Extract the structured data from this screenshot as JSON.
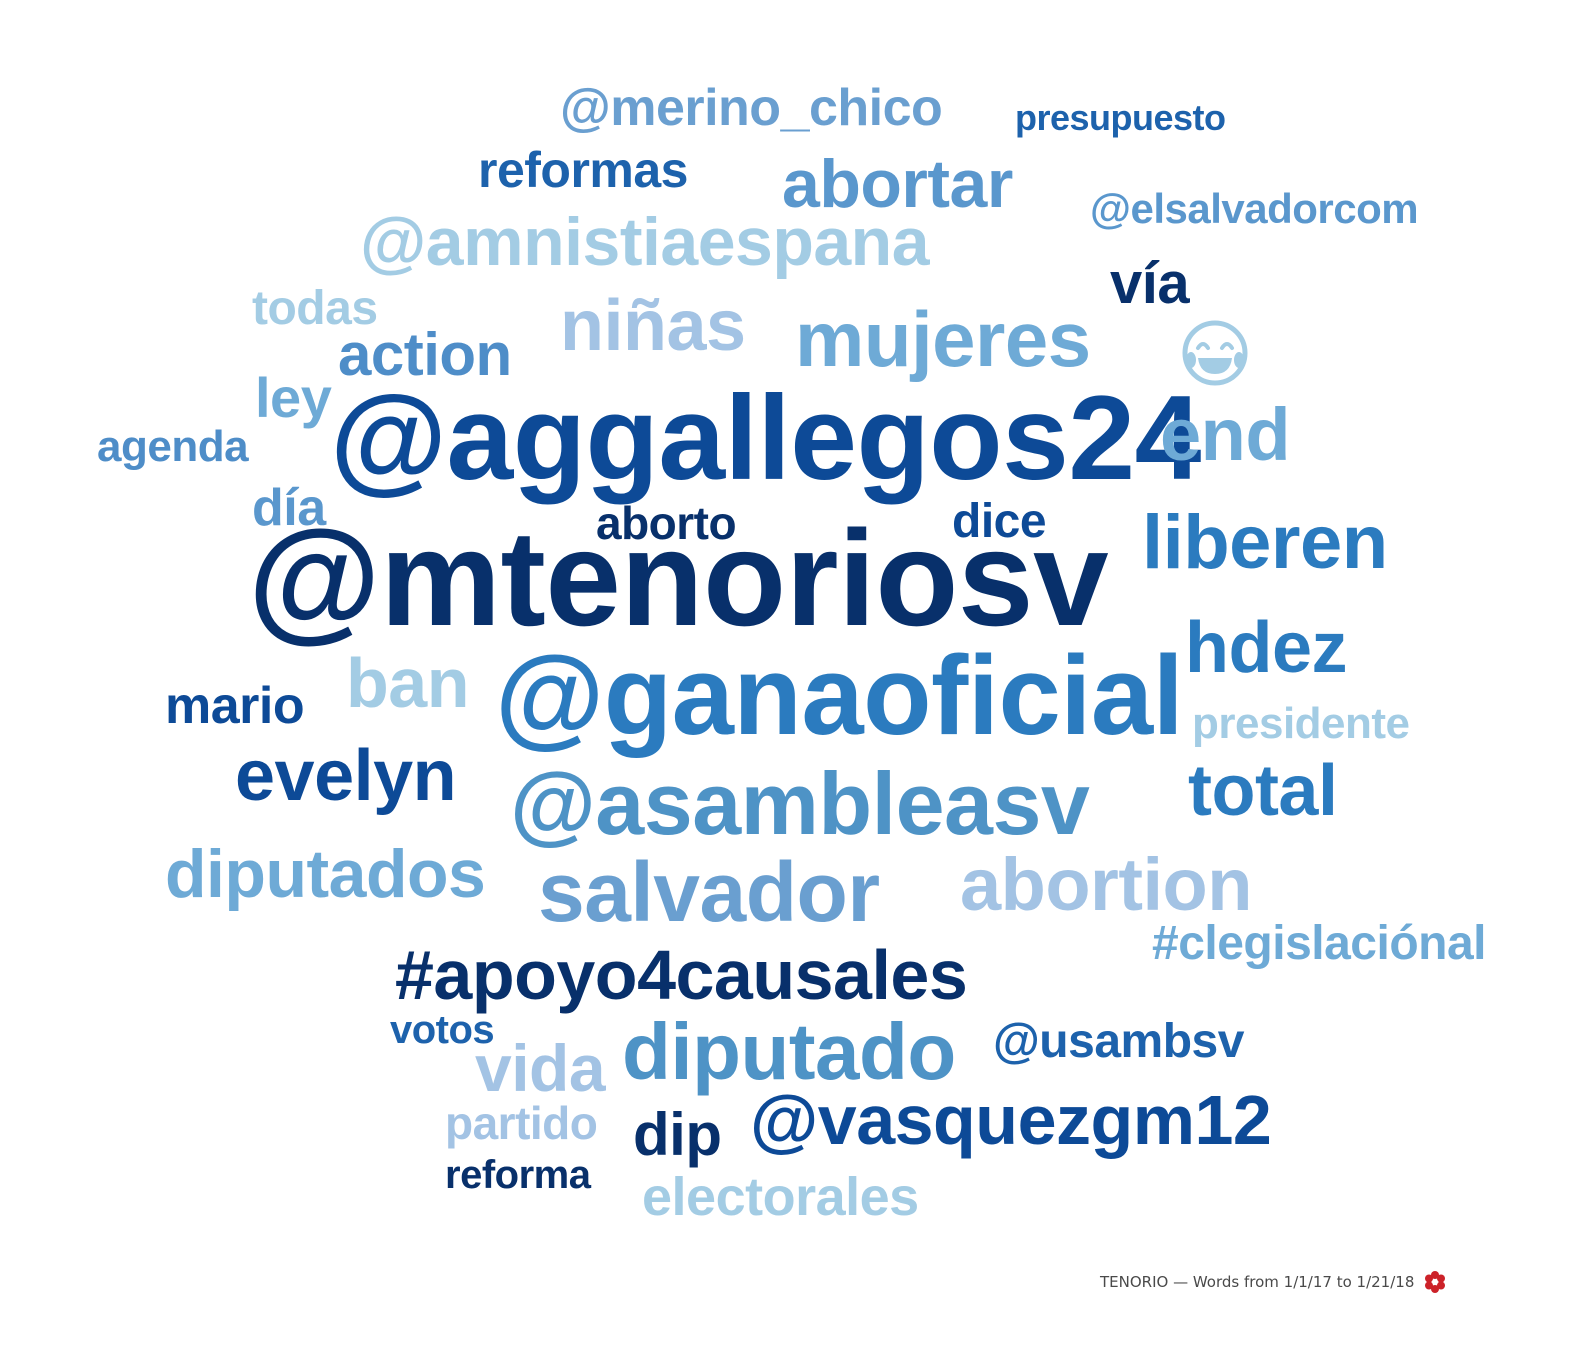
{
  "words": [
    {
      "text": "@merino_chico",
      "color": "#6a9fd0"
    },
    {
      "text": "presupuesto",
      "color": "#1d62ac"
    },
    {
      "text": "reformas",
      "color": "#1d62ac"
    },
    {
      "text": "abortar",
      "color": "#5a97cd"
    },
    {
      "text": "@elsalvadorcom",
      "color": "#5a97cd"
    },
    {
      "text": "@amnistiaespana",
      "color": "#a3cce4"
    },
    {
      "text": "vía",
      "color": "#08306b"
    },
    {
      "text": "todas",
      "color": "#a3cce4"
    },
    {
      "text": "niñas",
      "color": "#a3c3e4"
    },
    {
      "text": "mujeres",
      "color": "#6eaad6"
    },
    {
      "text": "action",
      "color": "#4e8dc8"
    },
    {
      "text": "ley",
      "color": "#6eaad6"
    },
    {
      "text": "@aggallegos24",
      "color": "#0d4a97"
    },
    {
      "text": "end",
      "color": "#6eaad6"
    },
    {
      "text": "agenda",
      "color": "#4e8dc8"
    },
    {
      "text": "día",
      "color": "#5a97cd"
    },
    {
      "text": "aborto",
      "color": "#08306b"
    },
    {
      "text": "dice",
      "color": "#0d4a97"
    },
    {
      "text": "liberen",
      "color": "#2b7bbf"
    },
    {
      "text": "@mtenoriosv",
      "color": "#08306b"
    },
    {
      "text": "hdez",
      "color": "#2b7bbf"
    },
    {
      "text": "mario",
      "color": "#0d4a97"
    },
    {
      "text": "ban",
      "color": "#a3cce4"
    },
    {
      "text": "@ganaoficial",
      "color": "#2b7bbf"
    },
    {
      "text": "presidente",
      "color": "#a3cce4"
    },
    {
      "text": "evelyn",
      "color": "#0d4a97"
    },
    {
      "text": "@asambleasv",
      "color": "#4e93c6"
    },
    {
      "text": "total",
      "color": "#2b7bbf"
    },
    {
      "text": "diputados",
      "color": "#6eaad6"
    },
    {
      "text": "salvador",
      "color": "#6a9fd0"
    },
    {
      "text": "abortion",
      "color": "#a3c3e4"
    },
    {
      "text": "#clegislaciónal",
      "color": "#6eaad6"
    },
    {
      "text": "#apoyo4causales",
      "color": "#08306b"
    },
    {
      "text": "votos",
      "color": "#1d62ac"
    },
    {
      "text": "@usambsv",
      "color": "#1d62ac"
    },
    {
      "text": "vida",
      "color": "#a3c3e4"
    },
    {
      "text": "diputado",
      "color": "#4e93c6"
    },
    {
      "text": "@vasquezgm12",
      "color": "#0d4a97"
    },
    {
      "text": "partido",
      "color": "#a3c3e4"
    },
    {
      "text": "dip",
      "color": "#08306b"
    },
    {
      "text": "reforma",
      "color": "#08306b"
    },
    {
      "text": "electorales",
      "color": "#a3cce4"
    }
  ],
  "emoji": {
    "icon": "face-with-tears-of-joy-icon",
    "color": "#a3cce4"
  },
  "footer": {
    "text": "TENORIO — Words from 1/1/17 to 1/21/18",
    "logo_icon": "flower-logo-icon",
    "logo_color": "#cc2229"
  }
}
